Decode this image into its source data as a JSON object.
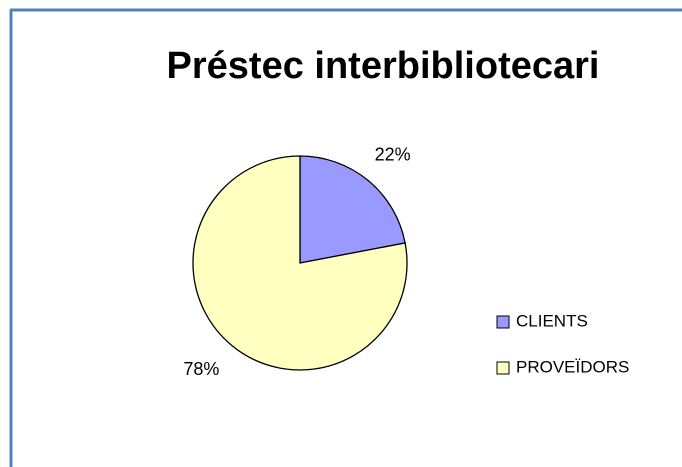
{
  "chart_data": {
    "type": "pie",
    "title": "Préstec interbibliotecari",
    "categories": [
      "CLIENTS",
      "PROVEÏDORS"
    ],
    "values": [
      22,
      78
    ],
    "value_labels": [
      "22%",
      "78%"
    ],
    "colors": [
      "#9999ff",
      "#ffffc0"
    ],
    "legend": "right"
  }
}
